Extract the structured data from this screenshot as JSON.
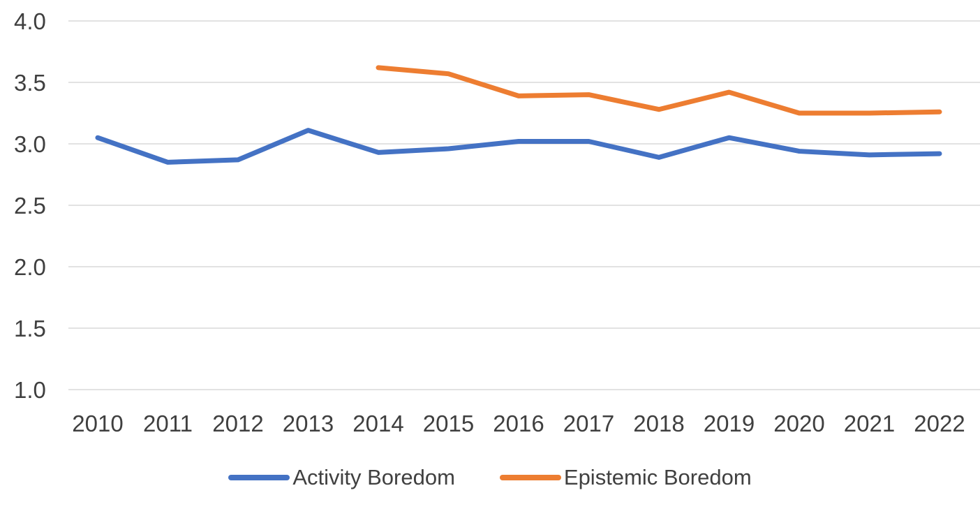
{
  "chart_data": {
    "type": "line",
    "title": "",
    "xlabel": "",
    "ylabel": "",
    "x": [
      "2010",
      "2011",
      "2012",
      "2013",
      "2014",
      "2015",
      "2016",
      "2017",
      "2018",
      "2019",
      "2020",
      "2021",
      "2022"
    ],
    "series": [
      {
        "name": "Activity Boredom",
        "color": "#4472C4",
        "values": [
          3.05,
          2.85,
          2.87,
          3.11,
          2.93,
          2.96,
          3.02,
          3.02,
          2.89,
          3.05,
          2.94,
          2.91,
          2.92
        ]
      },
      {
        "name": "Epistemic Boredom",
        "color": "#ED7D31",
        "values": [
          null,
          null,
          null,
          null,
          3.62,
          3.57,
          3.39,
          3.4,
          3.28,
          3.42,
          3.25,
          3.25,
          3.26
        ]
      }
    ],
    "ylim": [
      1.0,
      4.0
    ],
    "yticks": [
      4.0,
      3.5,
      3.0,
      2.5,
      2.0,
      1.5,
      1.0
    ],
    "ytick_labels": [
      "4.0",
      "3.5",
      "3.0",
      "2.5",
      "2.0",
      "1.5",
      "1.0"
    ],
    "grid": "horizontal-gridlines-on",
    "legend_position": "bottom-center",
    "colors": {
      "gridline": "#D9D9D9",
      "axis_text": "#3F3F3F",
      "legend_text": "#404040",
      "background": "#FFFFFF"
    }
  }
}
